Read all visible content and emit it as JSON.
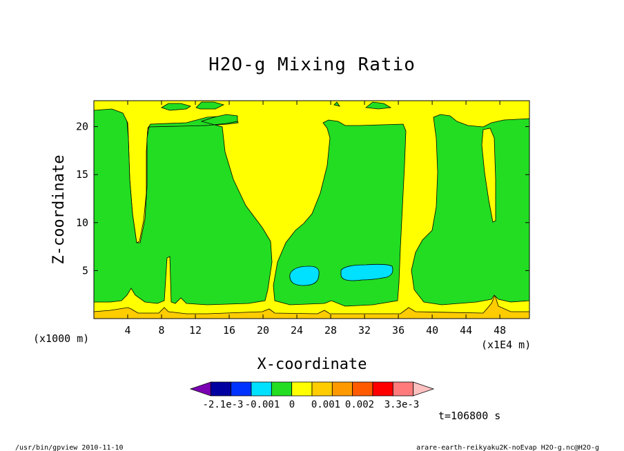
{
  "chart_data": {
    "type": "contour",
    "title": "H2O-g Mixing Ratio",
    "xlabel": "X-coordinate",
    "ylabel": "Z-coordinate",
    "x_unit_note": "(x1E4 m)",
    "y_unit_note": "(x1000 m)",
    "xlim": [
      0,
      51.5
    ],
    "ylim": [
      0,
      22.7
    ],
    "x_ticks": [
      4,
      8,
      12,
      16,
      20,
      24,
      28,
      32,
      36,
      40,
      44,
      48
    ],
    "y_ticks": [
      5,
      10,
      15,
      20
    ],
    "time_label": "t=106800 s",
    "colorbar": {
      "colors": [
        "#7b00b4",
        "#0000a0",
        "#0033ff",
        "#00e0ff",
        "#22dd22",
        "#ffff00",
        "#ffcc00",
        "#ff9900",
        "#ff5a00",
        "#ff0000",
        "#ff7b7b",
        "#ffc0c0"
      ],
      "tick_labels": [
        "-2.1e-3",
        "-0.001",
        "0",
        "0.001",
        "0.002",
        "3.3e-3"
      ]
    },
    "regions": [
      {
        "level": "green",
        "description_x_range": [
          1,
          21
        ],
        "z_range": [
          1.5,
          21.5
        ]
      },
      {
        "level": "green",
        "description_x_range": [
          22,
          36.5
        ],
        "z_range": [
          1.8,
          20.5
        ]
      },
      {
        "level": "green",
        "description_x_range": [
          38,
          51.5
        ],
        "z_range": [
          1.5,
          21.5
        ]
      },
      {
        "level": "cyan",
        "description_x_range": [
          23,
          26.5
        ],
        "z_range": [
          3.5,
          5.5
        ]
      },
      {
        "level": "cyan",
        "description_x_range": [
          29,
          35
        ],
        "z_range": [
          4,
          5.7
        ]
      }
    ]
  },
  "footer": {
    "left": "/usr/bin/gpview  2010-11-10",
    "right": "arare-earth-reikyaku2K-noEvap_H2O-g.nc@H2O-g"
  }
}
